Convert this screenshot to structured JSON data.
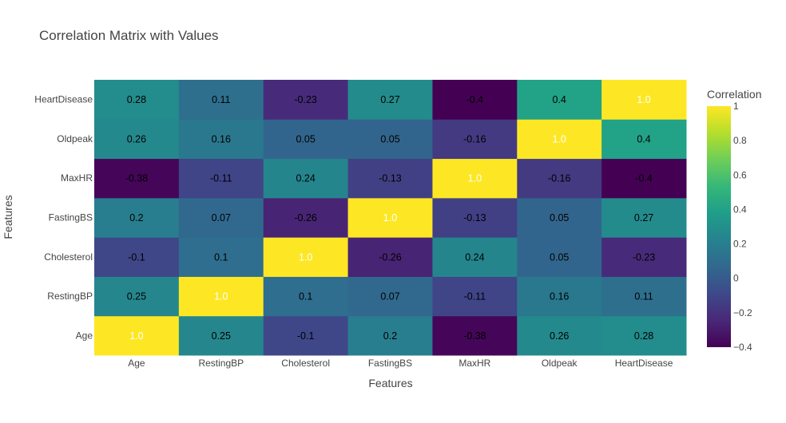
{
  "chart_data": {
    "type": "heatmap",
    "title": "Correlation Matrix with Values",
    "xlabel": "Features",
    "ylabel": "Features",
    "x_categories": [
      "Age",
      "RestingBP",
      "Cholesterol",
      "FastingBS",
      "MaxHR",
      "Oldpeak",
      "HeartDisease"
    ],
    "y_categories": [
      "Age",
      "RestingBP",
      "Cholesterol",
      "FastingBS",
      "MaxHR",
      "Oldpeak",
      "HeartDisease"
    ],
    "z": [
      [
        1.0,
        0.25,
        -0.1,
        0.2,
        -0.38,
        0.26,
        0.28
      ],
      [
        0.25,
        1.0,
        0.1,
        0.07,
        -0.11,
        0.16,
        0.11
      ],
      [
        -0.1,
        0.1,
        1.0,
        -0.26,
        0.24,
        0.05,
        -0.23
      ],
      [
        0.2,
        0.07,
        -0.26,
        1.0,
        -0.13,
        0.05,
        0.27
      ],
      [
        -0.38,
        -0.11,
        0.24,
        -0.13,
        1.0,
        -0.16,
        -0.4
      ],
      [
        0.26,
        0.16,
        0.05,
        0.05,
        -0.16,
        1.0,
        0.4
      ],
      [
        0.28,
        0.11,
        -0.23,
        0.27,
        -0.4,
        0.4,
        1.0
      ]
    ],
    "text": [
      [
        "1.0",
        "0.25",
        "-0.1",
        "0.2",
        "-0.38",
        "0.26",
        "0.28"
      ],
      [
        "0.25",
        "1.0",
        "0.1",
        "0.07",
        "-0.11",
        "0.16",
        "0.11"
      ],
      [
        "-0.1",
        "0.1",
        "1.0",
        "-0.26",
        "0.24",
        "0.05",
        "-0.23"
      ],
      [
        "0.2",
        "0.07",
        "-0.26",
        "1.0",
        "-0.13",
        "0.05",
        "0.27"
      ],
      [
        "-0.38",
        "-0.11",
        "0.24",
        "-0.13",
        "1.0",
        "-0.16",
        "-0.4"
      ],
      [
        "0.26",
        "0.16",
        "0.05",
        "0.05",
        "-0.16",
        "1.0",
        "0.4"
      ],
      [
        "0.28",
        "0.11",
        "-0.23",
        "0.27",
        "-0.4",
        "0.4",
        "1.0"
      ]
    ],
    "zmin": -0.4,
    "zmax": 1.0,
    "colorscale": "Viridis",
    "colorbar": {
      "title": "Correlation",
      "ticks": [
        -0.4,
        -0.2,
        0,
        0.2,
        0.4,
        0.6,
        0.8,
        1.0
      ],
      "tick_labels": [
        "−0.4",
        "−0.2",
        "0",
        "0.2",
        "0.4",
        "0.6",
        "0.8",
        "1"
      ]
    },
    "grid": false,
    "colors": {
      "title": "#444444",
      "axis_text": "#444444",
      "light_text": "#ffffff",
      "dark_text": "#000000",
      "viridis": [
        "#440154",
        "#482878",
        "#3e4989",
        "#31688e",
        "#26828e",
        "#1f9e89",
        "#35b779",
        "#6ece58",
        "#b5de2b",
        "#fde725"
      ]
    }
  }
}
